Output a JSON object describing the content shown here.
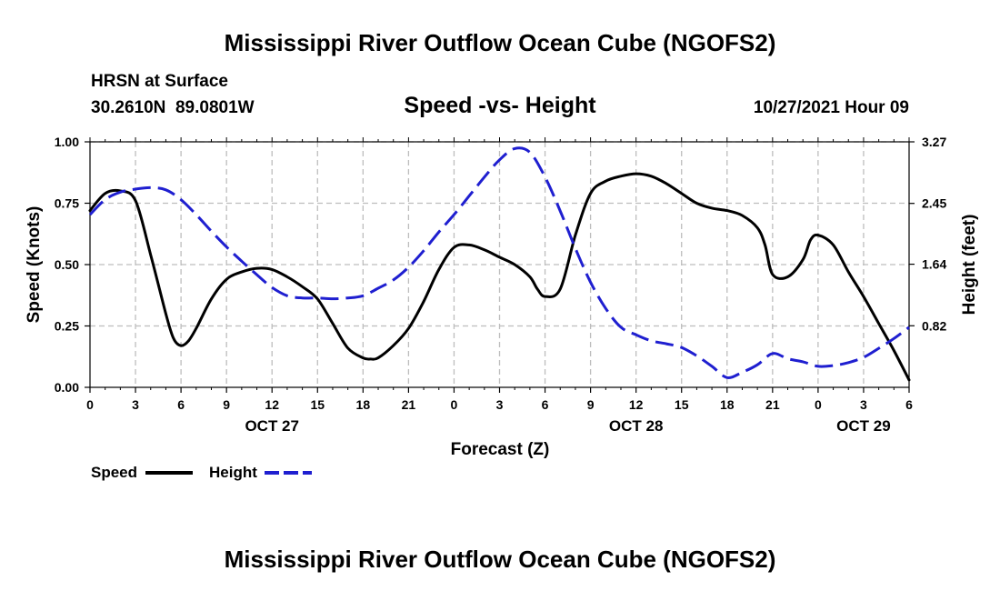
{
  "chart_data": {
    "type": "line",
    "title": "Mississippi River Outflow Ocean Cube (NGOFS2)",
    "station": "HRSN at Surface",
    "coordinates": "30.2610N  89.0801W",
    "subtitle": "Speed -vs- Height",
    "datetime": "10/27/2021 Hour 09",
    "xlabel": "Forecast (Z)",
    "ylabel_left": "Speed (Knots)",
    "ylabel_right": "Height (feet)",
    "x_range": [
      0,
      54
    ],
    "ylim_left": [
      0,
      1.0
    ],
    "ylim_right": [
      0,
      3.27
    ],
    "x_tick_values": [
      0,
      3,
      6,
      9,
      12,
      15,
      18,
      21,
      24,
      27,
      30,
      33,
      36,
      39,
      42,
      45,
      48,
      51,
      54
    ],
    "x_tick_labels": [
      "0",
      "3",
      "6",
      "9",
      "12",
      "15",
      "18",
      "21",
      "0",
      "3",
      "6",
      "9",
      "12",
      "15",
      "18",
      "21",
      "0",
      "3",
      "6"
    ],
    "y_left_ticks": [
      "0.00",
      "0.25",
      "0.50",
      "0.75",
      "1.00"
    ],
    "y_left_tick_values": [
      0,
      0.25,
      0.5,
      0.75,
      1.0
    ],
    "y_right_ticks": [
      "0.82",
      "1.64",
      "2.45",
      "3.27"
    ],
    "y_right_tick_values": [
      0.82,
      1.64,
      2.45,
      3.27
    ],
    "date_labels": [
      {
        "label": "OCT 27",
        "x": 12
      },
      {
        "label": "OCT 28",
        "x": 36
      },
      {
        "label": "OCT 29",
        "x": 51
      }
    ],
    "grid": true,
    "series": [
      {
        "name": "Speed",
        "axis": "left",
        "color": "#000000",
        "style": "solid",
        "x": [
          0,
          1,
          2,
          3,
          4,
          5,
          5.5,
          6,
          6.5,
          7,
          8,
          9,
          10,
          11,
          12,
          13,
          14,
          15,
          16,
          17,
          18,
          18.5,
          19,
          20,
          21,
          22,
          23,
          24,
          25,
          26,
          27,
          28,
          29,
          29.5,
          30,
          31,
          32,
          33,
          34,
          35,
          36,
          37,
          38,
          39,
          40,
          41,
          42,
          43,
          44,
          44.5,
          45,
          46,
          47,
          47.5,
          48,
          49,
          50,
          51,
          52,
          53,
          54
        ],
        "values": [
          0.72,
          0.79,
          0.8,
          0.76,
          0.54,
          0.3,
          0.2,
          0.17,
          0.19,
          0.24,
          0.36,
          0.44,
          0.47,
          0.485,
          0.48,
          0.45,
          0.41,
          0.36,
          0.26,
          0.16,
          0.12,
          0.115,
          0.12,
          0.17,
          0.24,
          0.35,
          0.48,
          0.57,
          0.58,
          0.56,
          0.53,
          0.5,
          0.45,
          0.4,
          0.37,
          0.4,
          0.62,
          0.79,
          0.84,
          0.86,
          0.87,
          0.86,
          0.83,
          0.79,
          0.75,
          0.73,
          0.72,
          0.7,
          0.65,
          0.58,
          0.46,
          0.45,
          0.52,
          0.6,
          0.62,
          0.58,
          0.47,
          0.37,
          0.26,
          0.15,
          0.03
        ]
      },
      {
        "name": "Height",
        "axis": "right",
        "color": "#1f1fd0",
        "style": "dashed",
        "x": [
          0,
          1,
          2,
          3,
          4,
          5,
          6,
          7,
          8,
          9,
          10,
          11,
          12,
          13,
          14,
          15,
          16,
          17,
          18,
          19,
          20,
          21,
          22,
          23,
          24,
          25,
          26,
          27,
          28,
          29,
          30,
          31,
          32,
          33,
          34,
          35,
          36,
          37,
          38,
          39,
          40,
          41,
          42,
          43,
          44,
          45,
          46,
          47,
          48,
          49,
          50,
          51,
          52,
          53,
          54
        ],
        "values": [
          2.3,
          2.5,
          2.6,
          2.64,
          2.66,
          2.63,
          2.5,
          2.3,
          2.08,
          1.87,
          1.68,
          1.5,
          1.33,
          1.22,
          1.19,
          1.19,
          1.18,
          1.19,
          1.22,
          1.32,
          1.43,
          1.6,
          1.82,
          2.07,
          2.3,
          2.55,
          2.8,
          3.03,
          3.18,
          3.13,
          2.8,
          2.35,
          1.85,
          1.4,
          1.05,
          0.8,
          0.7,
          0.62,
          0.58,
          0.53,
          0.42,
          0.28,
          0.13,
          0.2,
          0.3,
          0.45,
          0.38,
          0.34,
          0.28,
          0.29,
          0.33,
          0.4,
          0.52,
          0.65,
          0.8
        ]
      }
    ],
    "legend": [
      {
        "name": "Speed",
        "color": "#000000",
        "style": "solid"
      },
      {
        "name": "Height",
        "color": "#1f1fd0",
        "style": "dashed"
      }
    ],
    "legend_position": "bottom-left",
    "footer_title": "Mississippi River Outflow Ocean Cube (NGOFS2)"
  }
}
